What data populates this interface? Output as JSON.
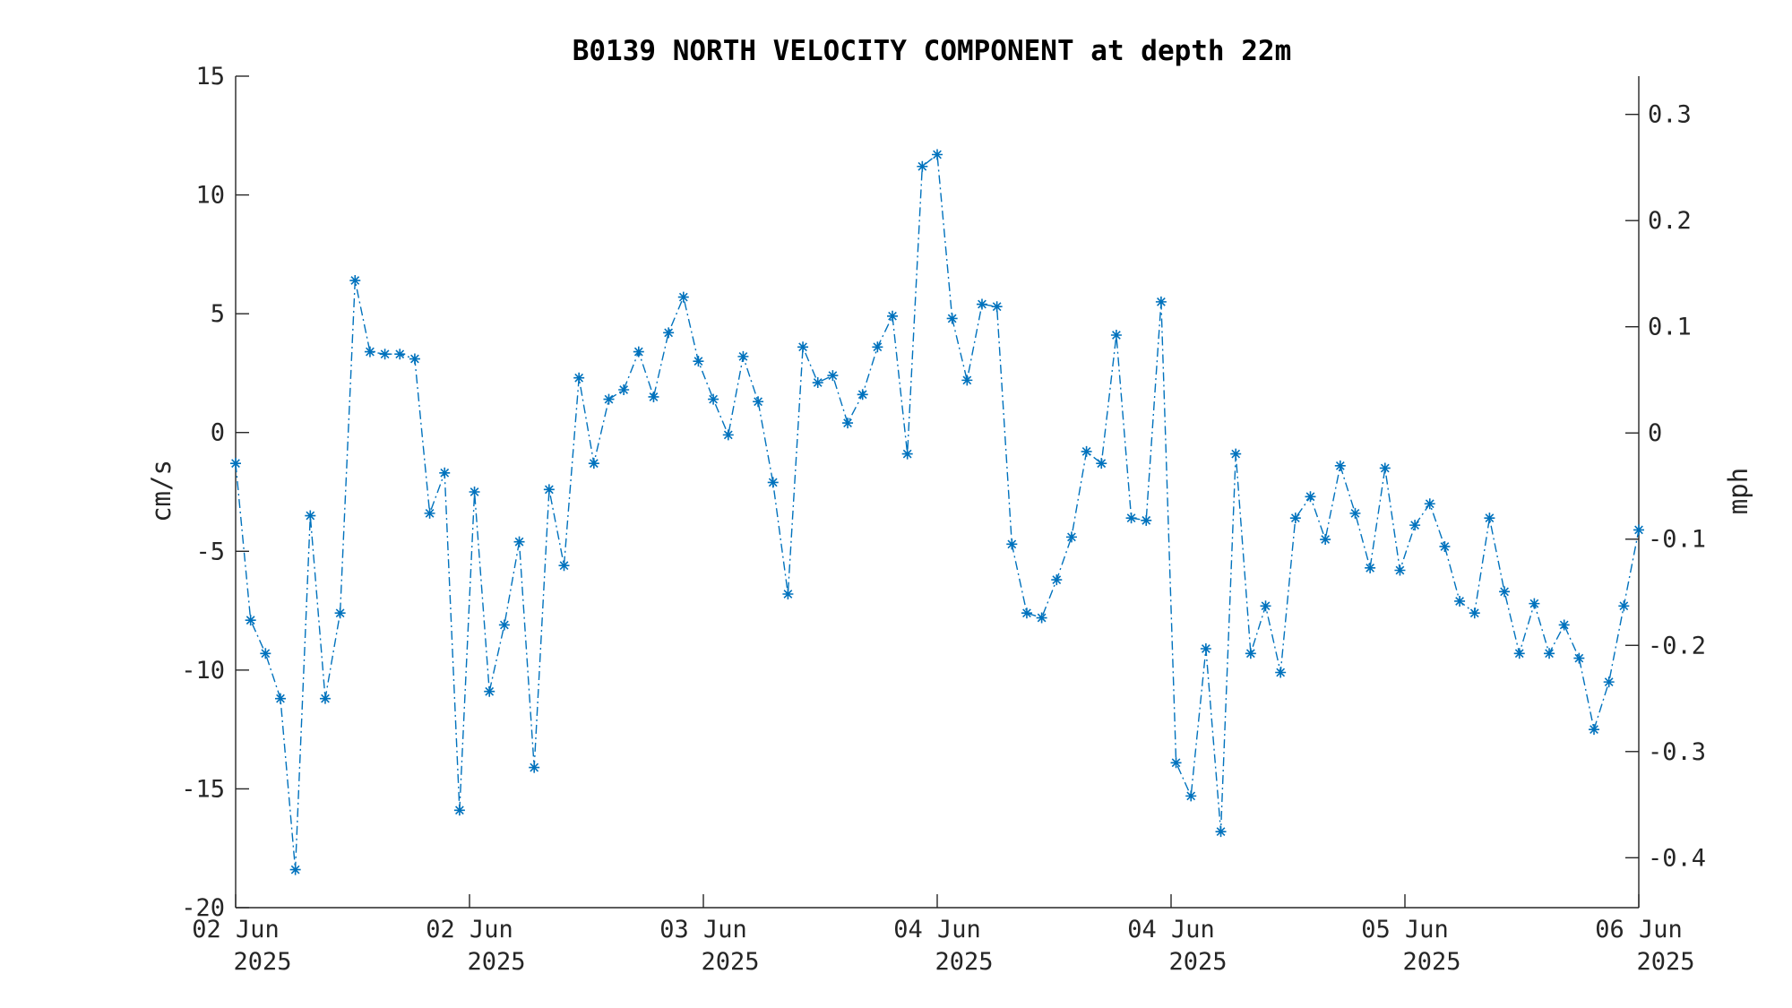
{
  "chart_data": {
    "type": "line",
    "title": "B0139 NORTH VELOCITY COMPONENT at depth 22m",
    "ylabel": "cm/s",
    "ylabel_right": "mph",
    "xlabel": "",
    "x_tick_labels": [
      {
        "day": "02 Jun",
        "year": "2025"
      },
      {
        "day": "02 Jun",
        "year": "2025"
      },
      {
        "day": "03 Jun",
        "year": "2025"
      },
      {
        "day": "04 Jun",
        "year": "2025"
      },
      {
        "day": "04 Jun",
        "year": "2025"
      },
      {
        "day": "05 Jun",
        "year": "2025"
      },
      {
        "day": "06 Jun",
        "year": "2025"
      }
    ],
    "y_ticks": [
      15,
      10,
      5,
      0,
      -5,
      -10,
      -15,
      -20
    ],
    "y_tick_labels": [
      "15",
      "10",
      "5",
      "0",
      "-5",
      "-10",
      "-15",
      "-20"
    ],
    "ylim": [
      -20,
      15
    ],
    "y2_ticks": [
      0.3,
      0.2,
      0.1,
      0,
      -0.1,
      -0.2,
      -0.3,
      -0.4
    ],
    "y2_tick_labels": [
      "0.3",
      "0.2",
      "0.1",
      "0",
      "-0.1",
      "-0.2",
      "-0.3",
      "-0.4"
    ],
    "y2lim": [
      -0.447,
      0.336
    ],
    "grid": false,
    "line_style": "dash-dot",
    "marker": "asterisk",
    "color": "#0072bd",
    "series": [
      {
        "values": [
          -1.3,
          -7.9,
          -9.3,
          -11.2,
          -18.4,
          -3.5,
          -11.2,
          -7.6,
          6.4,
          3.4,
          3.3,
          3.3,
          3.1,
          -3.4,
          -1.7,
          -15.9,
          -2.5,
          -10.9,
          -8.1,
          -4.6,
          -14.1,
          -2.4,
          -5.6,
          2.3,
          -1.3,
          1.4,
          1.8,
          3.4,
          1.5,
          4.2,
          5.7,
          3.0,
          1.4,
          -0.1,
          3.2,
          1.3,
          -2.1,
          -6.8,
          3.6,
          2.1,
          2.4,
          0.4,
          1.6,
          3.6,
          4.9,
          -0.9,
          11.2,
          11.7,
          4.8,
          2.2,
          5.4,
          5.3,
          -4.7,
          -7.6,
          -7.8,
          -6.2,
          -4.4,
          -0.8,
          -1.3,
          4.1,
          -3.6,
          -3.7,
          5.5,
          -13.9,
          -15.3,
          -9.1,
          -16.8,
          -0.9,
          -9.3,
          -7.3,
          -10.1,
          -3.6,
          -2.7,
          -4.5,
          -1.4,
          -3.4,
          -5.7,
          -1.5,
          -5.8,
          -3.9,
          -3.0,
          -4.8,
          -7.1,
          -7.6,
          -3.6,
          -6.7,
          -9.3,
          -7.2,
          -9.3,
          -8.1,
          -9.5,
          -12.5,
          -10.5,
          -7.3,
          -4.1
        ]
      }
    ]
  }
}
